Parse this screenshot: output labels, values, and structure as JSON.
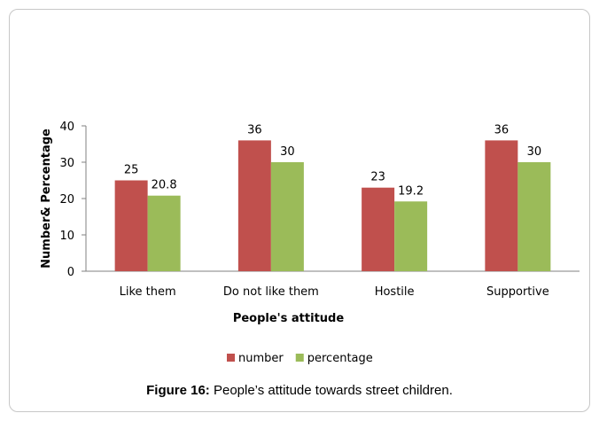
{
  "chart_data": {
    "type": "bar",
    "title": "",
    "categories": [
      "Like them",
      "Do not like them",
      "Hostile",
      "Supportive"
    ],
    "series": [
      {
        "name": "number",
        "values": [
          25,
          36,
          23,
          36
        ],
        "labels": [
          "25",
          "36",
          "23",
          "36"
        ]
      },
      {
        "name": "percentage",
        "values": [
          20.8,
          30,
          19.2,
          30
        ],
        "labels": [
          "20.8",
          "30",
          "19.2",
          "30"
        ]
      }
    ],
    "xlabel": "People's attitude",
    "ylabel": "Number& Percentage",
    "ylim": [
      0,
      40
    ],
    "yticks": [
      "0",
      "10",
      "20",
      "30",
      "40"
    ],
    "grid": false,
    "legend_position": "bottom",
    "colors": {
      "number": "#c0504d",
      "percentage": "#9bbb59",
      "axis": "#808080"
    }
  },
  "caption": {
    "label": "Figure 16:",
    "text": " People’s attitude towards street children."
  }
}
